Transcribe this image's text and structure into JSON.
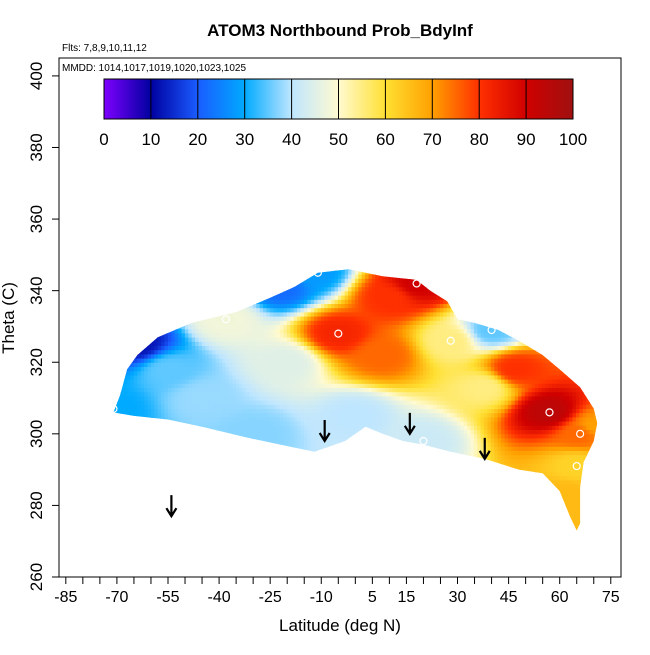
{
  "chart_data": {
    "type": "heatmap",
    "title": "ATOM3 Northbound Prob_BdyInf",
    "subtitle_flights": "Flts: 7,8,9,10,11,12",
    "subtitle_dates": "MMDD: 1014,1017,1019,1020,1023,1025",
    "xlabel": "Latitude (deg N)",
    "ylabel": "Theta (C)",
    "xlim": [
      -87,
      78
    ],
    "ylim": [
      260,
      405
    ],
    "x_tick_labels": [
      "-85",
      "-70",
      "-55",
      "-40",
      "-25",
      "-10",
      "5",
      "15",
      "30",
      "45",
      "60",
      "75"
    ],
    "x_tick_values": [
      -85,
      -70,
      -55,
      -40,
      -25,
      -10,
      5,
      15,
      30,
      45,
      60,
      75
    ],
    "x_minor_ticks": [
      -80,
      -75,
      -65,
      -60,
      -50,
      -45,
      -35,
      -30,
      -20,
      -15,
      -5,
      0,
      10,
      20,
      25,
      35,
      40,
      50,
      55,
      65,
      70
    ],
    "y_tick_labels": [
      "260",
      "280",
      "300",
      "320",
      "340",
      "360",
      "380",
      "400"
    ],
    "y_tick_values": [
      260,
      280,
      300,
      320,
      340,
      360,
      380,
      400
    ],
    "colorbar": {
      "range": [
        0,
        100
      ],
      "tick_labels": [
        "0",
        "10",
        "20",
        "30",
        "40",
        "50",
        "60",
        "70",
        "80",
        "90",
        "100"
      ],
      "colors": [
        "#7f00ff",
        "#0000a0",
        "#1a5cff",
        "#00aaff",
        "#bfe6ff",
        "#fffad0",
        "#ffe033",
        "#ffa000",
        "#ff3000",
        "#d00000",
        "#a01010"
      ]
    },
    "field_nodes": [
      {
        "lat": -71,
        "theta": 307,
        "value": 30
      },
      {
        "lat": -64,
        "theta": 325,
        "value": 12
      },
      {
        "lat": -38,
        "theta": 332,
        "value": 48
      },
      {
        "lat": -22,
        "theta": 341,
        "value": 22
      },
      {
        "lat": -12,
        "theta": 345,
        "value": 28
      },
      {
        "lat": -5,
        "theta": 328,
        "value": 82
      },
      {
        "lat": 18,
        "theta": 342,
        "value": 90
      },
      {
        "lat": 28,
        "theta": 326,
        "value": 55
      },
      {
        "lat": 40,
        "theta": 329,
        "value": 35
      },
      {
        "lat": 57,
        "theta": 306,
        "value": 94
      },
      {
        "lat": 66,
        "theta": 300,
        "value": 75
      },
      {
        "lat": 65,
        "theta": 291,
        "value": 62
      },
      {
        "lat": 20,
        "theta": 298,
        "value": 42
      },
      {
        "lat": -45,
        "theta": 310,
        "value": 38
      },
      {
        "lat": -30,
        "theta": 300,
        "value": 37
      },
      {
        "lat": 0,
        "theta": 305,
        "value": 40
      },
      {
        "lat": 8,
        "theta": 322,
        "value": 75
      },
      {
        "lat": 38,
        "theta": 313,
        "value": 55
      },
      {
        "lat": 47,
        "theta": 318,
        "value": 80
      },
      {
        "lat": 62,
        "theta": 283,
        "value": 66
      },
      {
        "lat": 70,
        "theta": 302,
        "value": 70
      },
      {
        "lat": -55,
        "theta": 318,
        "value": 35
      },
      {
        "lat": -20,
        "theta": 320,
        "value": 45
      },
      {
        "lat": 10,
        "theta": 338,
        "value": 80
      }
    ],
    "region_outline": [
      [
        -71,
        306
      ],
      [
        -69,
        311
      ],
      [
        -67,
        318
      ],
      [
        -64,
        322
      ],
      [
        -58,
        327
      ],
      [
        -48,
        331
      ],
      [
        -35,
        334
      ],
      [
        -25,
        338
      ],
      [
        -18,
        341
      ],
      [
        -11,
        345
      ],
      [
        -2,
        346
      ],
      [
        8,
        344
      ],
      [
        18,
        343
      ],
      [
        22,
        340
      ],
      [
        27,
        337
      ],
      [
        30,
        332
      ],
      [
        35,
        331
      ],
      [
        42,
        329
      ],
      [
        48,
        326
      ],
      [
        55,
        322
      ],
      [
        60,
        318
      ],
      [
        66,
        313
      ],
      [
        70,
        307
      ],
      [
        71,
        303
      ],
      [
        70,
        298
      ],
      [
        67,
        292
      ],
      [
        66,
        285
      ],
      [
        66,
        275
      ],
      [
        65,
        273
      ],
      [
        63,
        277
      ],
      [
        60,
        284
      ],
      [
        55,
        289
      ],
      [
        48,
        290
      ],
      [
        38,
        293
      ],
      [
        28,
        295
      ],
      [
        20,
        297
      ],
      [
        14,
        298
      ],
      [
        8,
        300
      ],
      [
        3,
        302
      ],
      [
        -3,
        298
      ],
      [
        -12,
        295
      ],
      [
        -22,
        297
      ],
      [
        -32,
        299
      ],
      [
        -45,
        302
      ],
      [
        -55,
        304
      ],
      [
        -65,
        305
      ]
    ],
    "flight_points": [
      {
        "lat": -64,
        "theta": 325
      },
      {
        "lat": -38,
        "theta": 332
      },
      {
        "lat": -22,
        "theta": 341
      },
      {
        "lat": -11,
        "theta": 345
      },
      {
        "lat": -5,
        "theta": 328
      },
      {
        "lat": 18,
        "theta": 342
      },
      {
        "lat": 28,
        "theta": 326
      },
      {
        "lat": 40,
        "theta": 329
      },
      {
        "lat": 57,
        "theta": 306
      },
      {
        "lat": 66,
        "theta": 300
      },
      {
        "lat": 65,
        "theta": 291
      },
      {
        "lat": 20,
        "theta": 298
      },
      {
        "lat": -71,
        "theta": 307
      }
    ],
    "tropopause_arrows": [
      {
        "lat": -54,
        "theta": 277
      },
      {
        "lat": -9,
        "theta": 298
      },
      {
        "lat": 16,
        "theta": 300
      },
      {
        "lat": 38,
        "theta": 293
      }
    ]
  }
}
